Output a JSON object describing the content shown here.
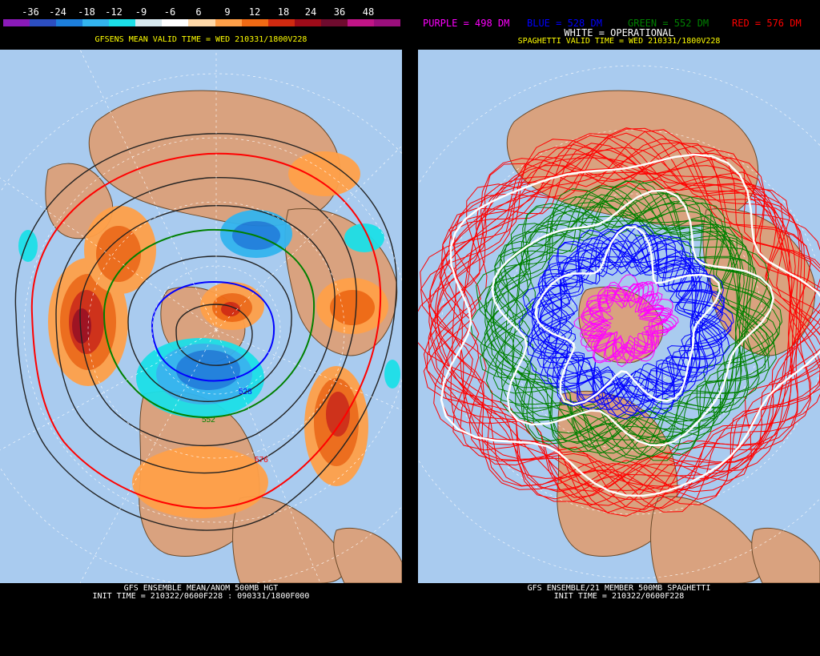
{
  "legend": {
    "ticks": [
      "-36",
      "-24",
      "-18",
      "-12",
      "-9",
      "-6",
      "6",
      "9",
      "12",
      "18",
      "24",
      "36",
      "48"
    ],
    "colors": [
      "#8a1ab8",
      "#2c4ec0",
      "#1d7fdc",
      "#33b4ee",
      "#1ce0e8",
      "#d7e8ee",
      "#ffffff",
      "#ffd8a8",
      "#ffa049",
      "#f06a14",
      "#d12a10",
      "#9e0b19",
      "#6e0b2e",
      "#c01486",
      "#9a0f7c"
    ]
  },
  "left": {
    "title": "GFSENS MEAN VALID TIME = WED 210331/1800V228",
    "contour_labels": [
      "528",
      "552",
      "576"
    ],
    "footer_line1": "GFS ENSEMBLE MEAN/ANOM 500MB HGT",
    "footer_line2": "INIT TIME = 210322/0600F228 : 090331/1800F000"
  },
  "right": {
    "header": {
      "purple": "PURPLE = 498 DM",
      "blue": "BLUE = 528 DM",
      "green": "GREEN = 552 DM",
      "red": "RED = 576 DM",
      "white": "WHITE = OPERATIONAL"
    },
    "title": "SPAGHETTI VALID TIME = WED 210331/1800V228",
    "footer_line1": "GFS ENSEMBLE/21 MEMBER 500MB SPAGHETTI",
    "footer_line2": "INIT TIME = 210322/0600F228"
  },
  "colors": {
    "ocean": "#a9cbef",
    "land": "#d9a27f",
    "header_yellow": "#ffff00",
    "purple": "#ff00ff",
    "blue": "#0000ff",
    "green": "#008000",
    "red": "#ff0000",
    "white": "#ffffff"
  }
}
